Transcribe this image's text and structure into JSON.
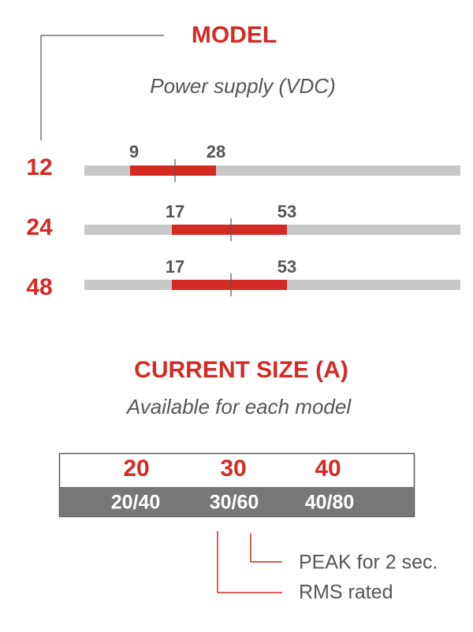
{
  "header": {
    "title": "MODEL",
    "subtitle": "Power supply (VDC)"
  },
  "models": [
    {
      "label": 12,
      "min": 9,
      "max": 28
    },
    {
      "label": 24,
      "min": 17,
      "max": 53
    },
    {
      "label": 48,
      "min": 17,
      "max": 53
    }
  ],
  "current": {
    "title": "CURRENT SIZE (A)",
    "subtitle": "Available for each model",
    "sizes": [
      20,
      30,
      40
    ],
    "ratings": [
      "20/40",
      "30/60",
      "40/80"
    ]
  },
  "legend": {
    "peak": "PEAK for 2 sec.",
    "rms": "RMS rated"
  }
}
